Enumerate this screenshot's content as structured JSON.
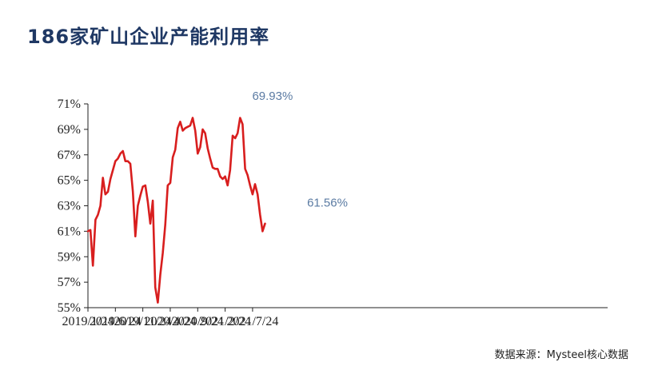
{
  "title": "186家矿山企业产能利用率",
  "source": "数据来源：Mysteel核心数据",
  "colors": {
    "line": "#d81e1e",
    "title": "#1f3864",
    "annotation": "#5b7ba3",
    "axis": "#222222"
  },
  "chart_data": {
    "type": "line",
    "title": "186家矿山企业产能利用率",
    "xlabel": "",
    "ylabel": "",
    "ylim": [
      55,
      71
    ],
    "y_ticks": [
      "55%",
      "57%",
      "59%",
      "61%",
      "63%",
      "65%",
      "67%",
      "69%",
      "71%"
    ],
    "x_ticks": [
      "2019/1/24",
      "2019/6/24",
      "2019/11/24",
      "2020/4/24",
      "2020/9/24",
      "2021/2/24",
      "2021/7/24"
    ],
    "grid": false,
    "legend": "none",
    "annotations": [
      {
        "text": "69.93%",
        "x_index": 74,
        "value": 69.93
      },
      {
        "text": "61.56%",
        "x_index": 96,
        "value": 61.56
      }
    ],
    "series": [
      {
        "values": [
          61.0,
          61.1,
          58.3,
          61.9,
          62.3,
          63.0,
          65.2,
          63.9,
          64.1,
          65.1,
          65.8,
          66.5,
          66.7,
          67.1,
          67.3,
          66.5,
          66.5,
          66.3,
          64.1,
          60.6,
          63.0,
          63.8,
          64.5,
          64.6,
          63.3,
          61.6,
          63.4,
          56.6,
          55.4,
          57.6,
          59.3,
          61.5,
          64.6,
          64.8,
          66.8,
          67.4,
          69.1,
          69.6,
          68.9,
          69.1,
          69.2,
          69.3,
          69.9,
          68.9,
          67.1,
          67.6,
          69.0,
          68.7,
          67.5,
          66.7,
          66.0,
          65.9,
          65.9,
          65.3,
          65.1,
          65.3,
          64.6,
          65.8,
          68.5,
          68.3,
          68.7,
          69.9,
          69.4,
          65.9,
          65.4,
          64.6,
          63.9,
          64.7,
          63.9,
          62.3,
          61.0,
          61.6
        ],
        "x_index": [
          0,
          1,
          2,
          3,
          4,
          5,
          6,
          7,
          8,
          9,
          10,
          11,
          12,
          13,
          14,
          15,
          16,
          17,
          18,
          19,
          20,
          21,
          22,
          23,
          24,
          25,
          26,
          27,
          28,
          29,
          30,
          31,
          32,
          33,
          34,
          35,
          36,
          37,
          38,
          39,
          40,
          41,
          42,
          43,
          44,
          45,
          46,
          47,
          48,
          49,
          50,
          51,
          52,
          53,
          54,
          55,
          56,
          57,
          58,
          59,
          60,
          61,
          62,
          63,
          64,
          65,
          66,
          67,
          68,
          69,
          70,
          71
        ],
        "x_tick_index": [
          0,
          11,
          22,
          33,
          44,
          55,
          66
        ]
      }
    ]
  }
}
